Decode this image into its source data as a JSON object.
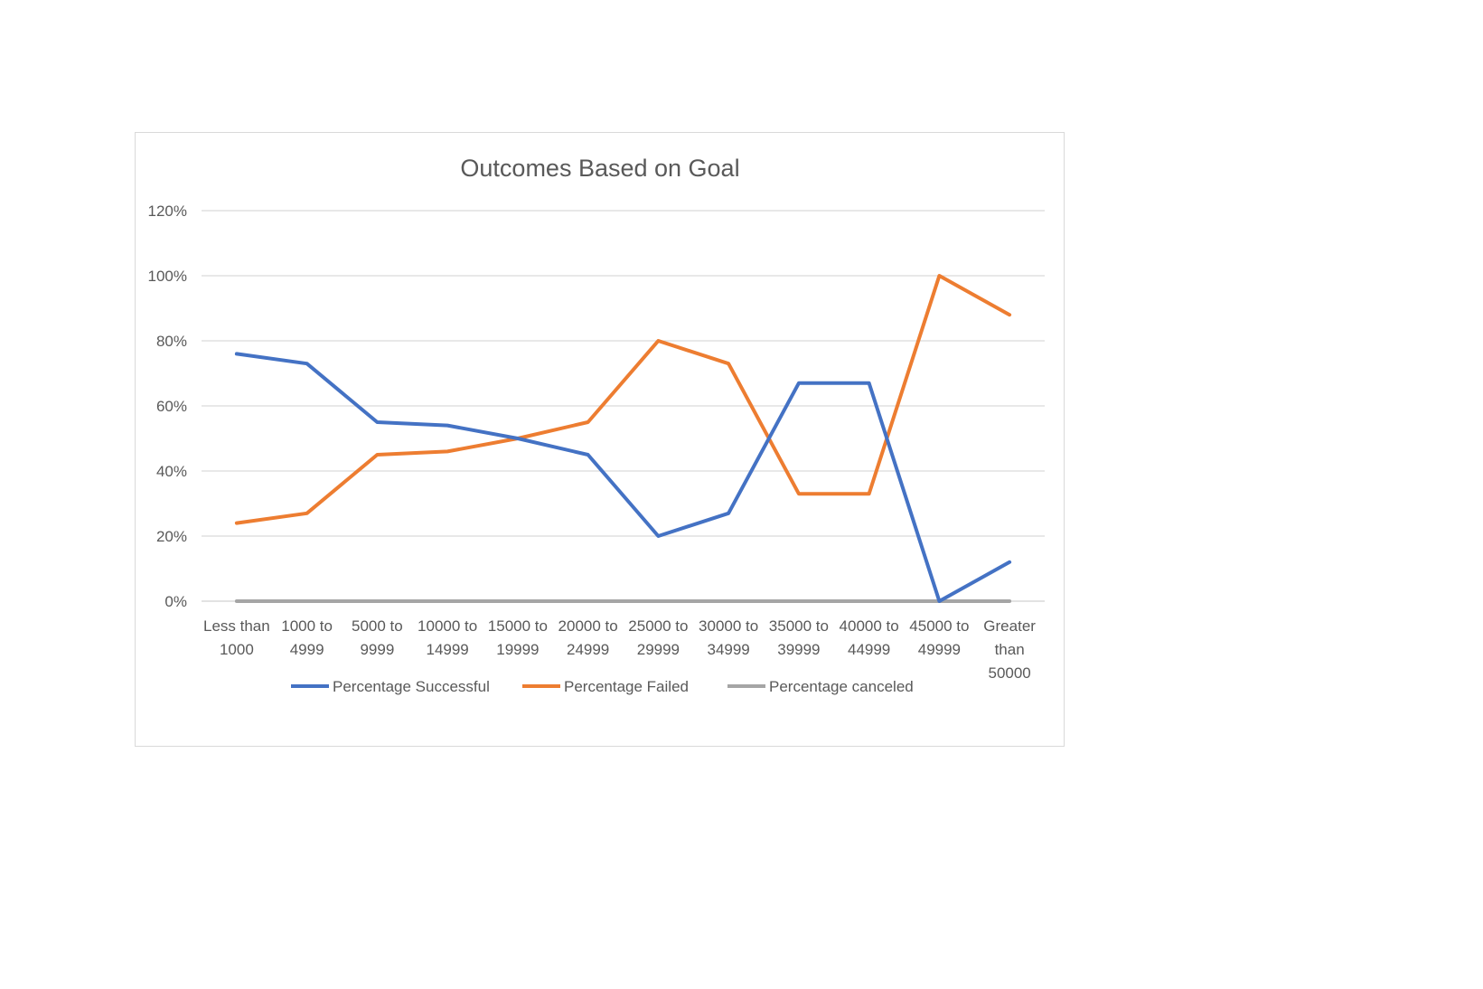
{
  "chart_data": {
    "type": "line",
    "title": "Outcomes Based on Goal",
    "xlabel": "",
    "ylabel": "",
    "categories": [
      [
        "Less than",
        "1000"
      ],
      [
        "1000 to",
        "4999"
      ],
      [
        "5000 to",
        "9999"
      ],
      [
        "10000 to",
        "14999"
      ],
      [
        "15000 to",
        "19999"
      ],
      [
        "20000 to",
        "24999"
      ],
      [
        "25000 to",
        "29999"
      ],
      [
        "30000 to",
        "34999"
      ],
      [
        "35000 to",
        "39999"
      ],
      [
        "40000 to",
        "44999"
      ],
      [
        "45000 to",
        "49999"
      ],
      [
        "Greater",
        "than",
        "50000"
      ]
    ],
    "y_tick_labels": [
      "0%",
      "20%",
      "40%",
      "60%",
      "80%",
      "100%",
      "120%"
    ],
    "y_ticks": [
      0,
      20,
      40,
      60,
      80,
      100,
      120
    ],
    "ylim": [
      0,
      120
    ],
    "grid": true,
    "legend_position": "bottom",
    "series": [
      {
        "name": "Percentage Successful",
        "color": "#4472C4",
        "values": [
          76,
          73,
          55,
          54,
          50,
          45,
          20,
          27,
          67,
          67,
          0,
          12
        ]
      },
      {
        "name": "Percentage Failed",
        "color": "#ED7D31",
        "values": [
          24,
          27,
          45,
          46,
          50,
          55,
          80,
          73,
          33,
          33,
          100,
          88
        ]
      },
      {
        "name": "Percentage canceled",
        "color": "#A5A5A5",
        "values": [
          0,
          0,
          0,
          0,
          0,
          0,
          0,
          0,
          0,
          0,
          0,
          0
        ]
      }
    ]
  }
}
